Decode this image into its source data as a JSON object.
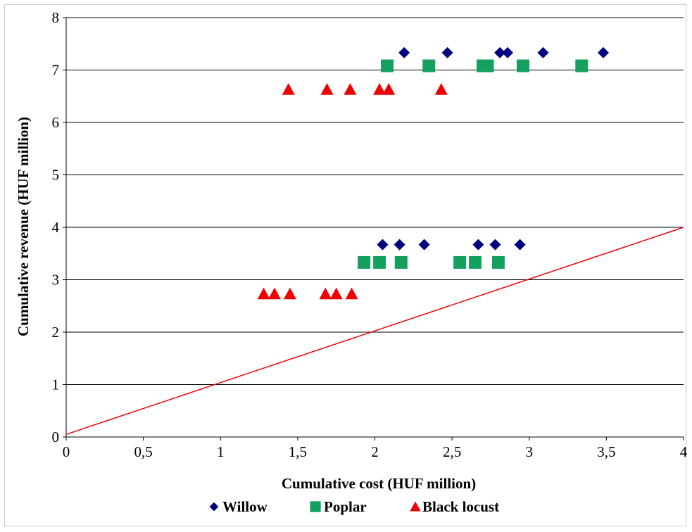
{
  "chart_data": {
    "type": "scatter",
    "xlabel": "Cumulative cost (HUF million)",
    "ylabel": "Cumulative revenue (HUF million)",
    "xlim": [
      0,
      4
    ],
    "ylim": [
      0,
      8
    ],
    "x_ticks": [
      "0",
      "0,5",
      "1",
      "1,5",
      "2",
      "2,5",
      "3",
      "3,5",
      "4"
    ],
    "y_ticks": [
      "0",
      "1",
      "2",
      "3",
      "4",
      "5",
      "6",
      "7",
      "8"
    ],
    "grid": "horizontal",
    "legend_position": "bottom",
    "series": [
      {
        "name": "Willow",
        "marker": "diamond",
        "color": "#00007f",
        "points": [
          [
            2.05,
            3.67
          ],
          [
            2.16,
            3.67
          ],
          [
            2.32,
            3.67
          ],
          [
            2.67,
            3.67
          ],
          [
            2.78,
            3.67
          ],
          [
            2.94,
            3.67
          ],
          [
            2.19,
            7.33
          ],
          [
            2.47,
            7.33
          ],
          [
            2.81,
            7.33
          ],
          [
            2.86,
            7.33
          ],
          [
            3.09,
            7.33
          ],
          [
            3.48,
            7.33
          ]
        ]
      },
      {
        "name": "Poplar",
        "marker": "square",
        "color": "#16a060",
        "points": [
          [
            1.93,
            3.33
          ],
          [
            2.03,
            3.33
          ],
          [
            2.17,
            3.33
          ],
          [
            2.55,
            3.33
          ],
          [
            2.65,
            3.33
          ],
          [
            2.8,
            3.33
          ],
          [
            2.08,
            7.08
          ],
          [
            2.35,
            7.08
          ],
          [
            2.7,
            7.08
          ],
          [
            2.73,
            7.08
          ],
          [
            2.96,
            7.08
          ],
          [
            3.34,
            7.08
          ]
        ]
      },
      {
        "name": "Black locust",
        "marker": "triangle",
        "color": "#ee0000",
        "points": [
          [
            1.28,
            2.73
          ],
          [
            1.35,
            2.73
          ],
          [
            1.45,
            2.73
          ],
          [
            1.68,
            2.73
          ],
          [
            1.75,
            2.73
          ],
          [
            1.85,
            2.73
          ],
          [
            1.44,
            6.63
          ],
          [
            1.69,
            6.63
          ],
          [
            1.84,
            6.63
          ],
          [
            2.03,
            6.63
          ],
          [
            2.09,
            6.63
          ],
          [
            2.43,
            6.63
          ]
        ]
      }
    ],
    "reference_line": {
      "color": "#ee0000",
      "from": [
        0,
        0.05
      ],
      "to": [
        4,
        4
      ]
    }
  }
}
